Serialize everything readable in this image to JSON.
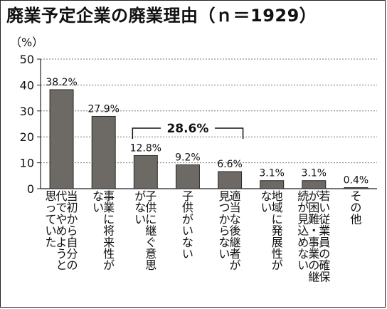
{
  "title": "廃業予定企業の廃業理由（ｎ＝1929）",
  "unit_label": "（%）",
  "chart_data": {
    "type": "bar",
    "title": "廃業予定企業の廃業理由（ｎ＝1929）",
    "ylabel": "（%）",
    "ylim": [
      0,
      50
    ],
    "yticks": [
      0,
      10,
      20,
      30,
      40,
      50
    ],
    "grid": true,
    "categories": [
      "当初から自分の代でやめようと思っていた",
      "事業に将来性がない",
      "子供に継ぐ意思がない",
      "子供がいない",
      "適当な後継者が見つからない",
      "地域に発展性がない",
      "従業員の確保が困難・事業の継続が見込めない",
      "その他"
    ],
    "category_lines": [
      [
        "当初から自分の",
        "代でやめようと",
        "思っていた"
      ],
      [
        "事業に将来性が",
        "ない"
      ],
      [
        "子供に継ぐ意思",
        "がない"
      ],
      [
        "子供がいない"
      ],
      [
        "適当な後継者が",
        "見つからない"
      ],
      [
        "地域に発展性が",
        "ない"
      ],
      [
        "若い従業員の確保",
        "が困難・事業の継",
        "続が見込めない"
      ],
      [
        "その他"
      ]
    ],
    "values": [
      38.2,
      27.9,
      12.8,
      9.2,
      6.6,
      3.1,
      3.1,
      0.4
    ],
    "value_labels": [
      "38.2%",
      "27.9%",
      "12.8%",
      "9.2%",
      "6.6%",
      "3.1%",
      "3.1%",
      "0.4%"
    ],
    "group_annotation": {
      "label": "28.6%",
      "from": 2,
      "to": 4
    },
    "colors": {
      "bar": "#6d6a66",
      "bar_edge": "#2a2a2a",
      "grid": "#777777",
      "axis": "#222222"
    }
  }
}
